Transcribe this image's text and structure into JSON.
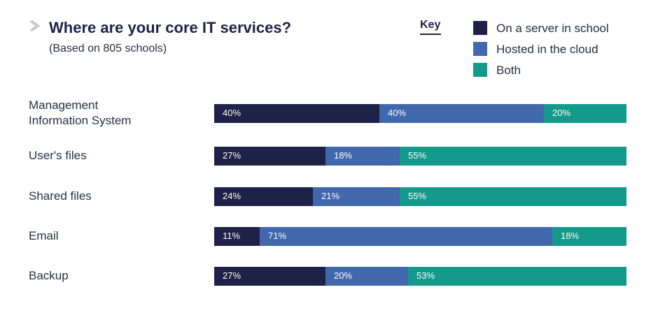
{
  "chart_data": {
    "type": "bar",
    "orientation": "horizontal",
    "stacked": true,
    "title": "Where are your core IT services?",
    "subtitle": "(Based on 805 schools)",
    "legend_title": "Key",
    "legend_position": "top-right",
    "xlim": [
      0,
      100
    ],
    "categories": [
      [
        "Management",
        "Information System"
      ],
      [
        "User's files"
      ],
      [
        "Shared files"
      ],
      [
        "Email"
      ],
      [
        "Backup"
      ]
    ],
    "series": [
      {
        "name": "On a server in school",
        "color": "#1f2248",
        "values": [
          40,
          27,
          24,
          11,
          27
        ]
      },
      {
        "name": "Hosted in the cloud",
        "color": "#4167ad",
        "values": [
          40,
          18,
          21,
          71,
          20
        ]
      },
      {
        "name": "Both",
        "color": "#149a8a",
        "values": [
          20,
          55,
          55,
          18,
          53
        ]
      }
    ]
  }
}
